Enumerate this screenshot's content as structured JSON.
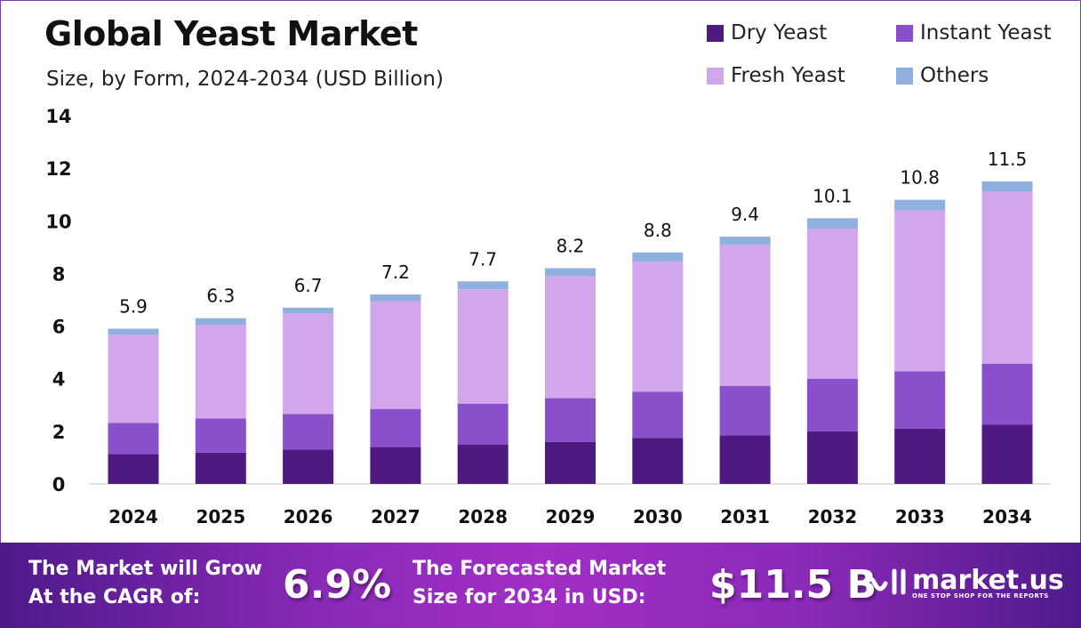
{
  "header": {
    "title": "Global Yeast Market",
    "subtitle": "Size, by Form, 2024-2034 (USD Billion)"
  },
  "chart_data": {
    "type": "bar",
    "stacked": true,
    "title": "Global Yeast Market",
    "subtitle": "Size, by Form, 2024-2034 (USD Billion)",
    "categories": [
      "2024",
      "2025",
      "2026",
      "2027",
      "2028",
      "2029",
      "2030",
      "2031",
      "2032",
      "2033",
      "2034"
    ],
    "series": [
      {
        "name": "Dry Yeast",
        "color": "#4e1a82",
        "values": [
          1.13,
          1.19,
          1.3,
          1.4,
          1.5,
          1.6,
          1.75,
          1.85,
          2.0,
          2.1,
          2.25
        ]
      },
      {
        "name": "Instant Yeast",
        "color": "#8a4fcb",
        "values": [
          1.19,
          1.3,
          1.36,
          1.45,
          1.55,
          1.66,
          1.75,
          1.88,
          2.0,
          2.18,
          2.32
        ]
      },
      {
        "name": "Fresh Yeast",
        "color": "#d1a6ea",
        "values": [
          3.35,
          3.55,
          3.82,
          4.1,
          4.35,
          4.64,
          4.95,
          5.37,
          5.7,
          6.12,
          6.53
        ]
      },
      {
        "name": "Others",
        "color": "#8fb0de",
        "values": [
          0.23,
          0.26,
          0.22,
          0.25,
          0.3,
          0.3,
          0.35,
          0.3,
          0.4,
          0.4,
          0.4
        ]
      }
    ],
    "totals": [
      "5.9",
      "6.3",
      "6.7",
      "7.2",
      "7.7",
      "8.2",
      "8.8",
      "9.4",
      "10.1",
      "10.8",
      "11.5"
    ],
    "yticks": [
      "0",
      "2",
      "4",
      "6",
      "8",
      "10",
      "12",
      "14"
    ],
    "ylim": [
      0,
      14
    ],
    "grid": false,
    "legend": "top-right"
  },
  "footer": {
    "cagr_label_1": "The Market will Grow",
    "cagr_label_2": "At the CAGR of:",
    "cagr_value": "6.9%",
    "size_label_1": "The Forecasted Market",
    "size_label_2": "Size for 2034 in USD:",
    "size_value": "$11.5 B",
    "logo_name": "market.us",
    "logo_tagline": "ONE STOP SHOP FOR THE REPORTS"
  }
}
